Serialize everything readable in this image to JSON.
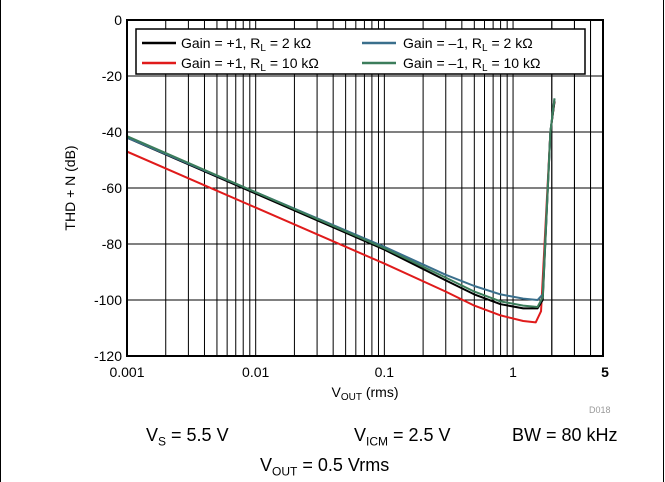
{
  "chart_data": {
    "type": "line",
    "ylabel": "THD + N (dB)",
    "xlabel": {
      "main": "V",
      "sub": "OUT",
      "rest": " (rms)"
    },
    "x_scale": "log",
    "xlim": [
      0.001,
      5
    ],
    "ylim": [
      -120,
      0
    ],
    "grid": true,
    "x_tick_labels": [
      {
        "value": 0.001,
        "label": "0.001"
      },
      {
        "value": 0.01,
        "label": "0.01"
      },
      {
        "value": 0.1,
        "label": "0.1"
      },
      {
        "value": 1,
        "label": "1"
      },
      {
        "value": 5,
        "label": "5"
      }
    ],
    "y_ticks": [
      0,
      -20,
      -40,
      -60,
      -80,
      -100,
      -120
    ],
    "y_tick_labels": [
      "0",
      "-20",
      "-40",
      "-60",
      "-80",
      "-100",
      "-120"
    ],
    "legend_position": "top",
    "series": [
      {
        "legend_parts": {
          "pre": "Gain = +1, R",
          "sub": "L",
          "post": " = 2 kΩ"
        },
        "color": "#000000",
        "points": [
          [
            0.001,
            -42
          ],
          [
            0.01,
            -62
          ],
          [
            0.1,
            -82
          ],
          [
            0.3,
            -93
          ],
          [
            0.5,
            -98
          ],
          [
            0.8,
            -101.5
          ],
          [
            1.2,
            -103
          ],
          [
            1.55,
            -103
          ],
          [
            1.7,
            -100
          ],
          [
            1.95,
            -40
          ],
          [
            2.1,
            -29
          ]
        ]
      },
      {
        "legend_parts": {
          "pre": "Gain = +1, R",
          "sub": "L",
          "post": " = 10 kΩ"
        },
        "color": "#e01b1b",
        "points": [
          [
            0.001,
            -47
          ],
          [
            0.01,
            -67
          ],
          [
            0.1,
            -87
          ],
          [
            0.3,
            -97
          ],
          [
            0.5,
            -102
          ],
          [
            0.8,
            -105.5
          ],
          [
            1.2,
            -107.5
          ],
          [
            1.5,
            -108
          ],
          [
            1.65,
            -104
          ],
          [
            1.95,
            -40
          ],
          [
            2.1,
            -29
          ]
        ]
      },
      {
        "legend_parts": {
          "pre": "Gain = –1, R",
          "sub": "L",
          "post": " = 2 kΩ"
        },
        "color": "#3a6f8c",
        "points": [
          [
            0.001,
            -42
          ],
          [
            0.01,
            -61.5
          ],
          [
            0.1,
            -81
          ],
          [
            0.3,
            -91
          ],
          [
            0.5,
            -95
          ],
          [
            0.8,
            -98
          ],
          [
            1.2,
            -99.5
          ],
          [
            1.55,
            -100
          ],
          [
            1.7,
            -98
          ],
          [
            1.95,
            -40
          ],
          [
            2.1,
            -28
          ]
        ]
      },
      {
        "legend_parts": {
          "pre": "Gain = –1, R",
          "sub": "L",
          "post": " = 10 kΩ"
        },
        "color": "#3c7d5b",
        "points": [
          [
            0.001,
            -41.5
          ],
          [
            0.01,
            -61.5
          ],
          [
            0.1,
            -81.5
          ],
          [
            0.3,
            -92
          ],
          [
            0.5,
            -97
          ],
          [
            0.8,
            -100.5
          ],
          [
            1.2,
            -102
          ],
          [
            1.55,
            -102.5
          ],
          [
            1.7,
            -99
          ],
          [
            1.95,
            -40
          ],
          [
            2.1,
            -28
          ]
        ]
      }
    ],
    "figure_code": "D018",
    "conditions": [
      {
        "main": "V",
        "sub": "S",
        "rest": " = 5.5 V"
      },
      {
        "main": "V",
        "sub": "ICM",
        "rest": " = 2.5 V"
      },
      {
        "main": "BW = 80 kHz",
        "sub": "",
        "rest": ""
      },
      {
        "main": "V",
        "sub": "OUT",
        "rest": " = 0.5 Vrms"
      }
    ]
  }
}
